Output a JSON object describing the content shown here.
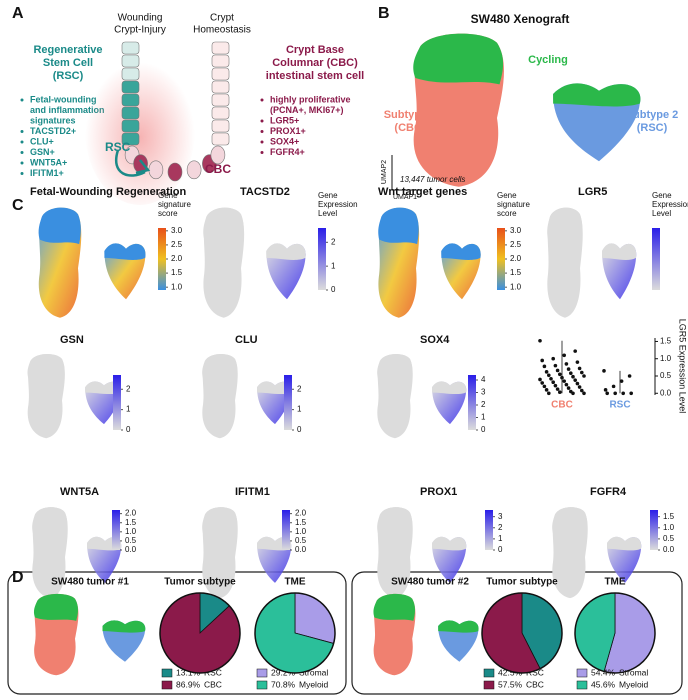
{
  "panel_labels": [
    "A",
    "B",
    "C",
    "D"
  ],
  "panel_a": {
    "rsc_title": [
      "Regenerative",
      "Stem Cell",
      "(RSC)"
    ],
    "rsc_markers": [
      [
        "Fetal-wounding",
        "and inflammation",
        "signatures"
      ],
      [
        "TACSTD2+"
      ],
      [
        "CLU+"
      ],
      [
        "GSN+"
      ],
      [
        "WNT5A+"
      ],
      [
        "IFITM1+"
      ]
    ],
    "crypt_labels": {
      "wounding": [
        "Wounding",
        "Crypt-Injury"
      ],
      "homeostasis": [
        "Crypt",
        "Homeostasis"
      ],
      "rsc": "RSC",
      "cbc": "CBC"
    },
    "cbc_title": [
      "Crypt Base",
      "Columnar (CBC)",
      "intestinal stem cell"
    ],
    "cbc_markers": [
      [
        "highly proliferative",
        "(PCNA+, MKI67+)"
      ],
      [
        "LGR5+"
      ],
      [
        "PROX1+"
      ],
      [
        "SOX4+"
      ],
      [
        "FGFR4+"
      ]
    ]
  },
  "panel_b": {
    "title": "SW480 Xenograft",
    "clusters": {
      "cycling": "Cycling",
      "subtype1": [
        "Subtype 1",
        "(CBC)"
      ],
      "subtype2": [
        "Subtype 2",
        "(RSC)"
      ]
    },
    "axis_y": "UMAP2",
    "axis_x": "UMAP1",
    "cell_count": "13,447 tumor cells"
  },
  "panel_d": {
    "tumors": [
      "SW480 tumor #1",
      "SW480 tumor #2"
    ]
  },
  "chart_data": [
    {
      "type": "feature",
      "title": "Fetal-Wounding Regeneration",
      "colorbar_label": [
        "Gene",
        "signature",
        "score"
      ],
      "clim": [
        0.9,
        3.1
      ],
      "ticks": [
        {
          "value": 1,
          "label": "1.0"
        },
        1.5,
        {
          "value": 2,
          "label": "2.0"
        },
        2.5,
        {
          "value": 3,
          "label": "3.0"
        }
      ],
      "colormap": [
        "#3a8fe0",
        "#f0c020",
        "#e8501a"
      ]
    },
    {
      "type": "feature",
      "title": "TACSTD2",
      "colorbar_label": [
        "Gene",
        "Expression",
        "Level"
      ],
      "clim": [
        0,
        2.6
      ],
      "ticks": [
        0,
        1,
        2
      ],
      "colormap": [
        "#dcdcdc",
        "#2a1ee8"
      ]
    },
    {
      "type": "feature",
      "title": "Wnt target genes",
      "colorbar_label": [
        "Gene",
        "signature",
        "score"
      ],
      "clim": [
        0.9,
        3.1
      ],
      "ticks": [
        {
          "value": 1,
          "label": "1.0"
        },
        1.5,
        {
          "value": 2,
          "label": "2.0"
        },
        2.5,
        {
          "value": 3,
          "label": "3.0"
        }
      ],
      "colormap": [
        "#3a8fe0",
        "#f0c020",
        "#e8501a"
      ]
    },
    {
      "type": "feature",
      "title": "LGR5",
      "colorbar_label": [
        "Gene",
        "Expression",
        "Level"
      ],
      "colormap": [
        "#dcdcdc",
        "#2a1ee8"
      ]
    },
    {
      "type": "feature",
      "title": "GSN",
      "clim": [
        0,
        2.7
      ],
      "ticks": [
        0,
        1,
        2
      ],
      "colormap": [
        "#dcdcdc",
        "#2a1ee8"
      ]
    },
    {
      "type": "feature",
      "title": "CLU",
      "clim": [
        0,
        2.7
      ],
      "ticks": [
        0,
        1,
        2
      ],
      "colormap": [
        "#dcdcdc",
        "#2a1ee8"
      ]
    },
    {
      "type": "feature",
      "title": "SOX4",
      "clim": [
        0,
        4.4
      ],
      "ticks": [
        0,
        1,
        2,
        3,
        4
      ],
      "colormap": [
        "#dcdcdc",
        "#2a1ee8"
      ]
    },
    {
      "type": "feature",
      "title": "WNT5A",
      "clim": [
        0,
        2.2
      ],
      "ticks": [
        {
          "value": 0,
          "label": "0.0"
        },
        0.5,
        {
          "value": 1,
          "label": "1.0"
        },
        1.5,
        {
          "value": 2,
          "label": "2.0"
        }
      ],
      "colormap": [
        "#dcdcdc",
        "#2a1ee8"
      ]
    },
    {
      "type": "feature",
      "title": "IFITM1",
      "clim": [
        0,
        2.2
      ],
      "ticks": [
        {
          "value": 0,
          "label": "0.0"
        },
        0.5,
        {
          "value": 1,
          "label": "1.0"
        },
        1.5,
        {
          "value": 2,
          "label": "2.0"
        }
      ],
      "colormap": [
        "#dcdcdc",
        "#2a1ee8"
      ]
    },
    {
      "type": "feature",
      "title": "PROX1",
      "clim": [
        0,
        3.6
      ],
      "ticks": [
        0,
        1,
        2,
        3
      ],
      "colormap": [
        "#dcdcdc",
        "#2a1ee8"
      ]
    },
    {
      "type": "feature",
      "title": "FGFR4",
      "clim": [
        0,
        1.8
      ],
      "ticks": [
        {
          "value": 0,
          "label": "0.0"
        },
        0.5,
        {
          "value": 1,
          "label": "1.0"
        },
        1.5
      ],
      "colormap": [
        "#dcdcdc",
        "#2a1ee8"
      ]
    },
    {
      "type": "strip",
      "categories": [
        "CBC",
        "RSC"
      ],
      "colors": [
        "#f08070",
        "#6a9ae0"
      ],
      "ylabel": "LGR5 Expression Level",
      "ylim": [
        -0.05,
        1.6
      ],
      "yticks": [
        {
          "value": 0,
          "label": "0.0"
        },
        0.5,
        {
          "value": 1,
          "label": "1.0"
        },
        1.5
      ],
      "values": [
        [
          1.52,
          1.22,
          1.1,
          1.0,
          0.95,
          0.9,
          0.85,
          0.8,
          0.78,
          0.72,
          0.7,
          0.66,
          0.62,
          0.6,
          0.58,
          0.55,
          0.52,
          0.5,
          0.48,
          0.45,
          0.42,
          0.4,
          0.38,
          0.35,
          0.32,
          0.3,
          0.28,
          0.25,
          0.22,
          0.2,
          0.18,
          0.15,
          0.12,
          0.1,
          0.08,
          0.05,
          0.03,
          0,
          0,
          0
        ],
        [
          0.65,
          0.5,
          0.35,
          0.2,
          0.1,
          0,
          0,
          0,
          0
        ]
      ]
    },
    {
      "type": "pie",
      "title": "Tumor subtype",
      "categories": [
        "RSC",
        "CBC"
      ],
      "values": [
        13.1,
        86.9
      ],
      "value_labels": [
        "13.1%",
        "86.9%"
      ],
      "colors": [
        "#1a8a88",
        "#8b1a4a"
      ]
    },
    {
      "type": "pie",
      "title": "TME",
      "categories": [
        "Stromal",
        "Myeloid"
      ],
      "values": [
        29.2,
        70.8
      ],
      "value_labels": [
        "29.2%",
        "70.8%"
      ],
      "colors": [
        "#a99ce8",
        "#2bbf9a"
      ]
    },
    {
      "type": "pie",
      "title": "Tumor subtype",
      "categories": [
        "RSC",
        "CBC"
      ],
      "values": [
        42.5,
        57.5
      ],
      "value_labels": [
        "42.5%",
        "57.5%"
      ],
      "colors": [
        "#1a8a88",
        "#8b1a4a"
      ]
    },
    {
      "type": "pie",
      "title": "TME",
      "categories": [
        "Stromal",
        "Myeloid"
      ],
      "values": [
        54.4,
        45.6
      ],
      "value_labels": [
        "54.4%",
        "45.6%"
      ],
      "colors": [
        "#a99ce8",
        "#2bbf9a"
      ]
    }
  ]
}
